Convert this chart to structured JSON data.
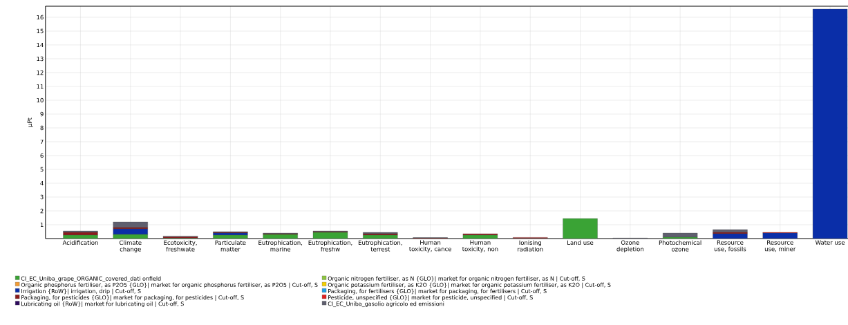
{
  "chart_data": {
    "type": "bar",
    "stacked": true,
    "ylabel": "µPt",
    "categories": [
      "Acidification",
      "Climate change",
      "Ecotoxicity, freshwate",
      "Particulate matter",
      "Eutrophication, marine",
      "Eutrophication, freshw",
      "Eutrophication, terrest",
      "Human toxicity, cance",
      "Human toxicity, non",
      "Ionising radiation",
      "Land use",
      "Ozone depletion",
      "Photochemical ozone",
      "Resource use, fossils",
      "Resource use, miner",
      "Water use"
    ],
    "ylim": [
      0,
      16.8
    ],
    "yticks": [
      1,
      2,
      3,
      4,
      5,
      6,
      7,
      8,
      9,
      10,
      11,
      12,
      13,
      14,
      15,
      16
    ],
    "grid": true,
    "legend": "bottom",
    "series": [
      {
        "name": "CI_EC_Uniba_grape_ORGANIC_covered_dati onfield",
        "color": "#3aa335",
        "values": [
          0.25,
          0.3,
          0.03,
          0.25,
          0.3,
          0.45,
          0.25,
          0,
          0.25,
          0,
          1.45,
          0,
          0.1,
          0,
          0,
          0
        ]
      },
      {
        "name": "Organic nitrogen fertiliser, as N {GLO}| market for organic nitrogen fertiliser, as N | Cut-off, S",
        "color": "#8dc63f",
        "values": [
          0,
          0,
          0,
          0,
          0,
          0,
          0,
          0,
          0,
          0,
          0,
          0,
          0,
          0,
          0,
          0
        ]
      },
      {
        "name": "Organic phosphorus fertiliser, as P2O5 {GLO}| market for organic phosphorus fertiliser, as P2O5 | Cut-off, S",
        "color": "#f39c34",
        "values": [
          0,
          0,
          0,
          0,
          0,
          0,
          0,
          0,
          0,
          0,
          0,
          0,
          0,
          0,
          0,
          0
        ]
      },
      {
        "name": "Organic potassium fertiliser, as K2O {GLO}| market for organic potassium fertiliser, as K2O | Cut-off, S",
        "color": "#f5d000",
        "values": [
          0,
          0,
          0,
          0,
          0,
          0,
          0,
          0,
          0,
          0,
          0,
          0,
          0,
          0,
          0,
          0
        ]
      },
      {
        "name": "Irrigation {RoW}| irrigation, drip | Cut-off, S",
        "color": "#0a2ea8",
        "values": [
          0,
          0.4,
          0,
          0.15,
          0,
          0,
          0,
          0,
          0,
          0,
          0,
          0,
          0,
          0.35,
          0.4,
          16.6
        ]
      },
      {
        "name": "Packaging, for fertilisers {GLO}| market for packaging, for fertilisers | Cut-off, S",
        "color": "#1ea0e6",
        "values": [
          0,
          0,
          0,
          0,
          0,
          0,
          0,
          0,
          0,
          0,
          0,
          0,
          0,
          0,
          0,
          0
        ]
      },
      {
        "name": "Packaging, for pesticides {GLO}| market for packaging, for pesticides | Cut-off, S",
        "color": "#8b1a1a",
        "values": [
          0.2,
          0.1,
          0.1,
          0.05,
          0.05,
          0.05,
          0.1,
          0.04,
          0.05,
          0.04,
          0,
          0,
          0,
          0.1,
          0,
          0
        ]
      },
      {
        "name": "Pesticide, unspecified {GLO}| market for pesticide, unspecified | Cut-off, S",
        "color": "#e02020",
        "values": [
          0,
          0,
          0,
          0,
          0,
          0,
          0,
          0,
          0.05,
          0.04,
          0,
          0,
          0,
          0,
          0.05,
          0
        ]
      },
      {
        "name": "Lubricating oil {RoW}| market for lubricating oil | Cut-off, S",
        "color": "#2e0a5e",
        "values": [
          0,
          0,
          0,
          0,
          0,
          0,
          0,
          0,
          0,
          0,
          0,
          0,
          0,
          0,
          0,
          0
        ]
      },
      {
        "name": "CI_EC_Uniba_gasolio agricolo ed emissioni",
        "color": "#5f5f6e",
        "values": [
          0.1,
          0.4,
          0.05,
          0.05,
          0.05,
          0.05,
          0.1,
          0.03,
          0,
          0,
          0,
          0.04,
          0.3,
          0.2,
          0,
          0
        ]
      }
    ]
  }
}
